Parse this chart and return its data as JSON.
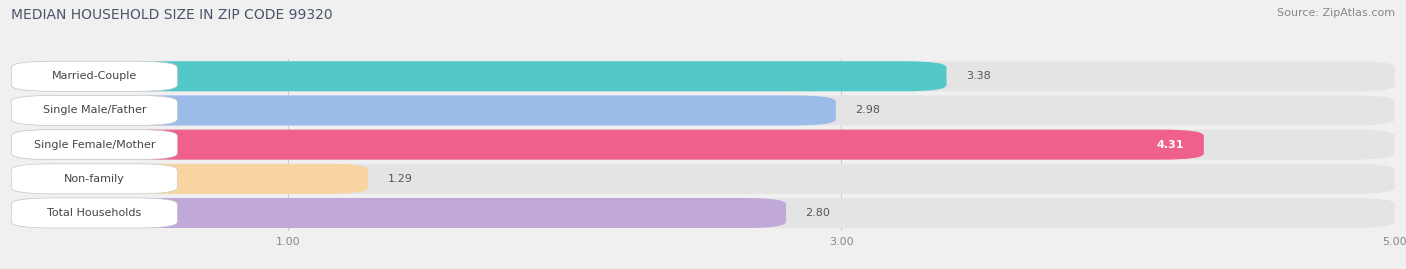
{
  "title": "MEDIAN HOUSEHOLD SIZE IN ZIP CODE 99320",
  "source": "Source: ZipAtlas.com",
  "categories": [
    "Married-Couple",
    "Single Male/Father",
    "Single Female/Mother",
    "Non-family",
    "Total Households"
  ],
  "values": [
    3.38,
    2.98,
    4.31,
    1.29,
    2.8
  ],
  "bar_colors": [
    "#52C8C8",
    "#9BBCE8",
    "#F0608C",
    "#F8D4A0",
    "#C0A8D8"
  ],
  "label_colors": [
    "#555555",
    "#555555",
    "#555555",
    "#555555",
    "#555555"
  ],
  "value_colors": [
    "#555555",
    "#555555",
    "#ffffff",
    "#555555",
    "#555555"
  ],
  "xlim": [
    0.0,
    5.0
  ],
  "xmin": 0.6,
  "xticks": [
    1.0,
    3.0,
    5.0
  ],
  "background_color": "#f0f0f0",
  "bar_background_color": "#e4e4e4",
  "title_fontsize": 10,
  "source_fontsize": 8,
  "label_fontsize": 8,
  "value_fontsize": 8
}
